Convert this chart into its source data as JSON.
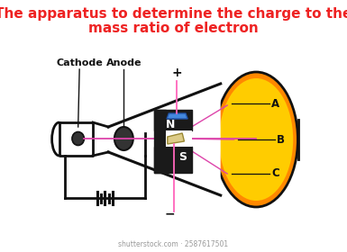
{
  "title_line1": "The apparatus to determine the charge to the",
  "title_line2": "mass ratio of electron",
  "title_color": "#ee2222",
  "title_fontsize": 11,
  "bg_color": "#ffffff",
  "labels": {
    "cathode": "Cathode",
    "anode": "Anode",
    "N": "N",
    "S": "S",
    "plus": "+",
    "minus": "−",
    "A": "A",
    "B": "B",
    "C": "C"
  },
  "beam_color": "#dd44aa",
  "screen_yellow": "#ffcc00",
  "screen_orange": "#ff8800",
  "magnet_color": "#1a1a1a",
  "plate_blue": "#4488dd",
  "plate_tan": "#ddcc88",
  "dark_gray": "#333333",
  "black": "#111111",
  "wire_pink": "#ff66bb"
}
